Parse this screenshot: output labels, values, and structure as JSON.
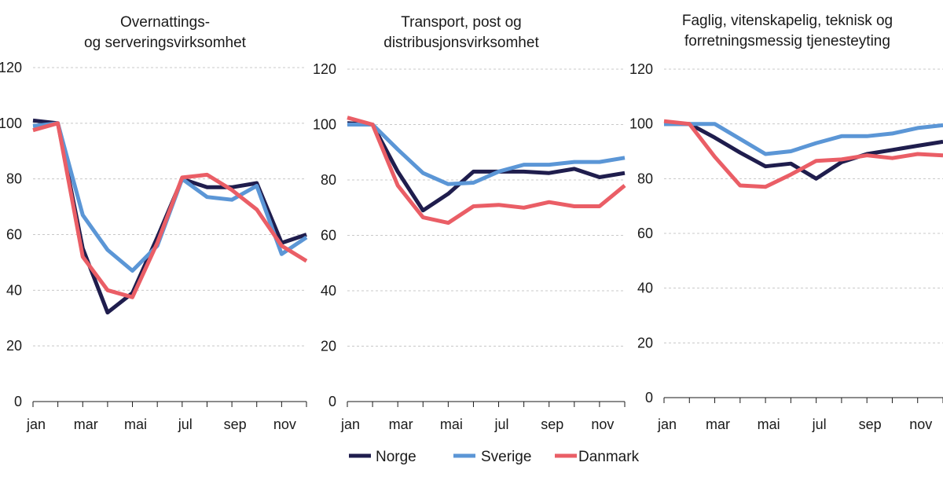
{
  "chart_data": [
    {
      "type": "line",
      "title": [
        "Overnattings-",
        "og serveringsvirksomhet"
      ],
      "categories": [
        "jan",
        "feb",
        "mar",
        "apr",
        "mai",
        "jun",
        "jul",
        "aug",
        "sep",
        "okt",
        "nov",
        "des"
      ],
      "tick_labels": [
        "jan",
        "mar",
        "mai",
        "jul",
        "sep",
        "nov"
      ],
      "ylim": [
        0,
        120
      ],
      "yticks": [
        0,
        20,
        40,
        60,
        80,
        100,
        120
      ],
      "series": [
        {
          "name": "Norge",
          "values": [
            101,
            100,
            55,
            32,
            39,
            59,
            80,
            77,
            77,
            78.5,
            57,
            60
          ]
        },
        {
          "name": "Sverige",
          "values": [
            99,
            100,
            67,
            54.5,
            47,
            56,
            80,
            73.5,
            72.5,
            77.5,
            53,
            59
          ]
        },
        {
          "name": "Danmark",
          "values": [
            97.5,
            100,
            52,
            40,
            37.5,
            57,
            80.5,
            81.5,
            76,
            69,
            56,
            50.5
          ]
        }
      ]
    },
    {
      "type": "line",
      "title": [
        "Transport, post og",
        "distribusjonsvirksomhet"
      ],
      "categories": [
        "jan",
        "feb",
        "mar",
        "apr",
        "mai",
        "jun",
        "jul",
        "aug",
        "sep",
        "okt",
        "nov",
        "des"
      ],
      "tick_labels": [
        "jan",
        "mar",
        "mai",
        "jul",
        "sep",
        "nov"
      ],
      "ylim": [
        0,
        120
      ],
      "yticks": [
        0,
        20,
        40,
        60,
        80,
        100,
        120
      ],
      "series": [
        {
          "name": "Norge",
          "values": [
            100.5,
            100,
            83,
            69,
            75,
            83,
            83,
            83,
            82.5,
            84,
            81,
            82.5
          ]
        },
        {
          "name": "Sverige",
          "values": [
            100,
            100,
            91,
            82.5,
            78.5,
            79,
            83,
            85.5,
            85.5,
            86.5,
            86.5,
            88
          ]
        },
        {
          "name": "Danmark",
          "values": [
            102.5,
            100,
            78,
            66.5,
            64.5,
            70.5,
            71,
            70,
            72,
            70.5,
            70.5,
            78
          ]
        }
      ]
    },
    {
      "type": "line",
      "title": [
        "Faglig, vitenskapelig, teknisk og",
        "forretningsmessig tjenesteyting"
      ],
      "categories": [
        "jan",
        "feb",
        "mar",
        "apr",
        "mai",
        "jun",
        "jul",
        "aug",
        "sep",
        "okt",
        "nov",
        "des"
      ],
      "tick_labels": [
        "jan",
        "mar",
        "mai",
        "jul",
        "sep",
        "nov"
      ],
      "ylim": [
        0,
        120
      ],
      "yticks": [
        0,
        20,
        40,
        60,
        80,
        100,
        120
      ],
      "series": [
        {
          "name": "Norge",
          "values": [
            100,
            100,
            95,
            89.5,
            84.5,
            85.5,
            80,
            86,
            89,
            90.5,
            92,
            93.5
          ]
        },
        {
          "name": "Sverige",
          "values": [
            100,
            100,
            100,
            94.5,
            89,
            90,
            93,
            95.5,
            95.5,
            96.5,
            98.5,
            99.5
          ]
        },
        {
          "name": "Danmark",
          "values": [
            101,
            100,
            88,
            77.5,
            77,
            81.5,
            86.5,
            87,
            88.5,
            87.5,
            89,
            88.5
          ]
        }
      ]
    }
  ],
  "legend": [
    {
      "name": "Norge",
      "color": "#1f1d4d"
    },
    {
      "name": "Sverige",
      "color": "#5b96d6"
    },
    {
      "name": "Danmark",
      "color": "#ea5e66"
    }
  ]
}
